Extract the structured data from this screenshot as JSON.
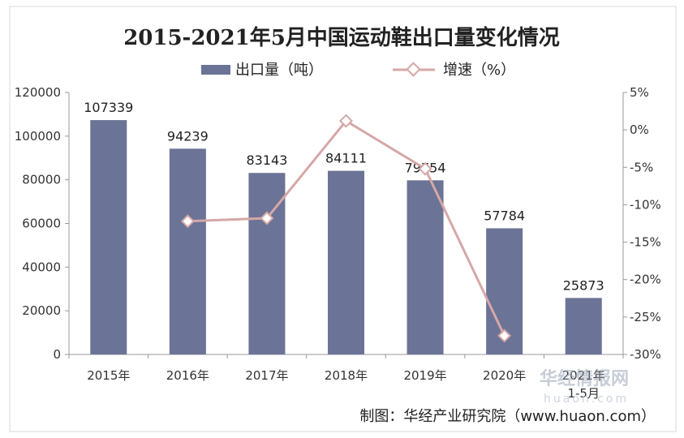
{
  "chart_data": {
    "type": "bar",
    "title": "2015-2021年5月中国运动鞋出口量变化情况",
    "categories": [
      "2015年",
      "2016年",
      "2017年",
      "2018年",
      "2019年",
      "2020年",
      "2021年1-5月"
    ],
    "series": [
      {
        "name": "出口量（吨）",
        "type": "bar",
        "axis": "left",
        "color": "#6b7396",
        "values": [
          107339,
          94239,
          83143,
          84111,
          79754,
          57784,
          25873
        ]
      },
      {
        "name": "增速（%）",
        "type": "line",
        "axis": "right",
        "color": "#d6a7a7",
        "values": [
          null,
          -12.2,
          -11.8,
          1.2,
          -5.2,
          -27.5,
          null
        ]
      }
    ],
    "left_axis": {
      "min": 0,
      "max": 120000,
      "step": 20000,
      "ticks": [
        "0",
        "20000",
        "40000",
        "60000",
        "80000",
        "100000",
        "120000"
      ]
    },
    "right_axis": {
      "min": -30,
      "max": 5,
      "step": 5,
      "ticks": [
        "-30%",
        "-25%",
        "-20%",
        "-15%",
        "-10%",
        "-5%",
        "0%",
        "5%"
      ]
    },
    "legend": "top-center",
    "grid": false,
    "data_labels": [
      "107339",
      "94239",
      "83143",
      "84111",
      "79754",
      "57784",
      "25873"
    ]
  },
  "source": "制图：华经产业研究院（www.huaon.com）",
  "watermark": {
    "text": "华经情报网",
    "url": "huaon.com"
  }
}
